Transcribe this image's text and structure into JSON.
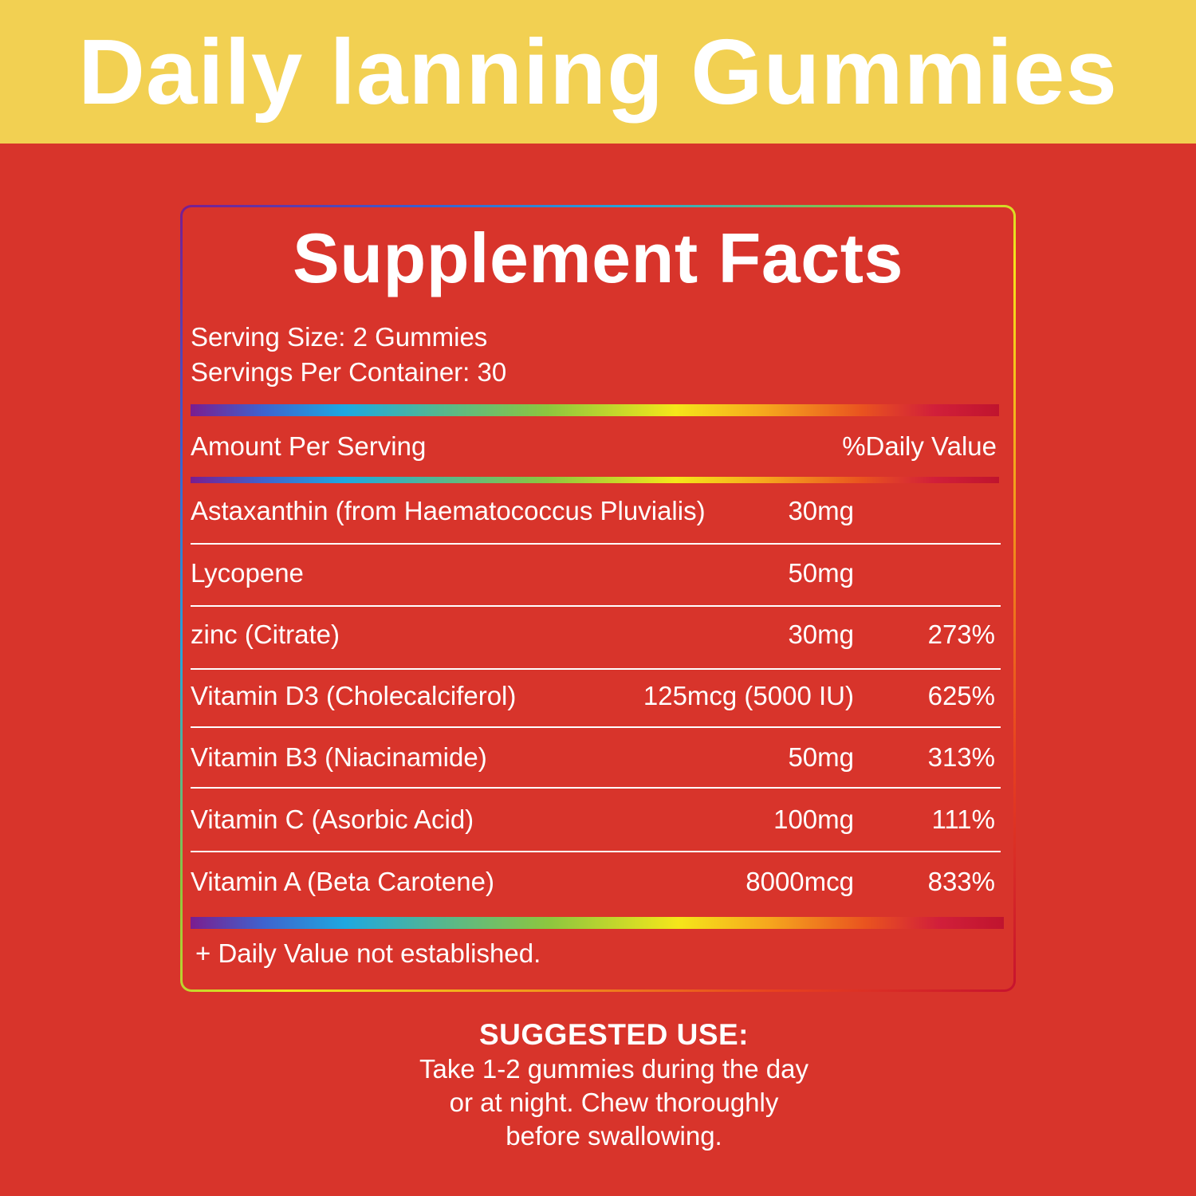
{
  "banner": {
    "title": "Daily lanning Gummies"
  },
  "facts": {
    "title": "Supplement Facts",
    "serving_size": "Serving Size: 2 Gummies",
    "servings_per_container": "Servings Per Container: 30",
    "header_amount": "Amount Per Serving",
    "header_dv": "%Daily Value",
    "rows": [
      {
        "name": "Astaxanthin (from Haematococcus Pluvialis)",
        "amount": "30mg",
        "dv": ""
      },
      {
        "name": "Lycopene",
        "amount": "50mg",
        "dv": ""
      },
      {
        "name": "zinc (Citrate)",
        "amount": "30mg",
        "dv": "273%"
      },
      {
        "name": "Vitamin D3 (Cholecalciferol)",
        "amount": "125mcg (5000 IU)",
        "dv": "625%"
      },
      {
        "name": "Vitamin B3 (Niacinamide)",
        "amount": "50mg",
        "dv": "313%"
      },
      {
        "name": "Vitamin C (Asorbic Acid)",
        "amount": "100mg",
        "dv": "111%"
      },
      {
        "name": "Vitamin A (Beta Carotene)",
        "amount": "8000mcg",
        "dv": "833%"
      }
    ],
    "footnote": "+ Daily Value not established."
  },
  "suggested_use": {
    "heading": "SUGGESTED USE:",
    "lines": [
      "Take 1-2 gummies during the day",
      "or at night. Chew thoroughly",
      "before swallowing."
    ]
  },
  "colors": {
    "background": "#d8342b",
    "banner": "#f2d052",
    "text": "#ffffff"
  }
}
